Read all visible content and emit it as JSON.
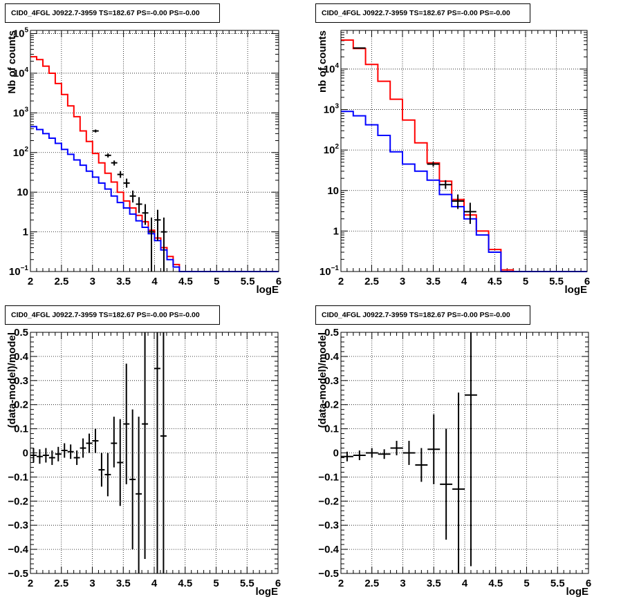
{
  "chart_data": [
    {
      "panel": "top-left",
      "type": "line",
      "title": "CID0_4FGL J0922.7-3959 TS=182.67 PS=-0.00 PS=-0.00",
      "xlabel": "logE",
      "ylabel": "Nb of counts",
      "xlim": [
        2,
        6
      ],
      "ylim": [
        0.1,
        120000
      ],
      "ylog": true,
      "grid": true,
      "xticks": [
        "2",
        "2.5",
        "3",
        "3.5",
        "4",
        "4.5",
        "5",
        "5.5",
        "6"
      ],
      "yticks": [
        {
          "v": 0.1,
          "l": "10",
          "sup": "−1"
        },
        {
          "v": 1,
          "l": "1",
          "sup": ""
        },
        {
          "v": 10,
          "l": "10",
          "sup": ""
        },
        {
          "v": 100,
          "l": "10",
          "sup": "2"
        },
        {
          "v": 1000,
          "l": "10",
          "sup": "3"
        },
        {
          "v": 10000,
          "l": "10",
          "sup": "4"
        },
        {
          "v": 100000,
          "l": "10",
          "sup": "5"
        }
      ],
      "bin_edges": [
        2.0,
        2.1,
        2.2,
        2.3,
        2.4,
        2.5,
        2.6,
        2.7,
        2.8,
        2.9,
        3.0,
        3.1,
        3.2,
        3.3,
        3.4,
        3.5,
        3.6,
        3.7,
        3.8,
        3.9,
        4.0,
        4.1,
        4.2,
        4.3,
        4.4,
        4.5,
        4.6,
        4.7,
        4.8,
        4.9,
        5.0,
        5.1,
        5.2,
        5.3,
        5.4,
        5.5,
        5.6,
        5.7,
        5.8,
        5.9,
        6.0
      ],
      "series": [
        {
          "color": "#ff0000",
          "values": [
            26000,
            22000,
            15000,
            10000,
            5500,
            2900,
            1500,
            800,
            350,
            190,
            95,
            55,
            30,
            18,
            10,
            6,
            4,
            2.6,
            1.8,
            1.1,
            0.7,
            0.4,
            0.24,
            0.15,
            0.1,
            0.1,
            0.1,
            0.1,
            0.1,
            0.1,
            0.1,
            0.1,
            0.1,
            0.1,
            0.1,
            0.1,
            0.1,
            0.1,
            0.1,
            0.1
          ]
        },
        {
          "color": "#0000ff",
          "values": [
            450,
            380,
            300,
            230,
            170,
            120,
            90,
            65,
            48,
            34,
            24,
            17,
            12,
            8,
            5.5,
            4,
            2.8,
            1.9,
            1.3,
            0.9,
            0.6,
            0.35,
            0.2,
            0.13,
            0.1,
            0.1,
            0.1,
            0.1,
            0.1,
            0.1,
            0.1,
            0.1,
            0.1,
            0.1,
            0.1,
            0.1,
            0.1,
            0.1,
            0.1,
            0.1
          ]
        }
      ],
      "points": [
        {
          "x": 3.05,
          "xerr": 0.05,
          "y": 350,
          "lo": 320,
          "hi": 380
        },
        {
          "x": 3.25,
          "xerr": 0.05,
          "y": 85,
          "lo": 75,
          "hi": 95
        },
        {
          "x": 3.35,
          "xerr": 0.05,
          "y": 55,
          "lo": 47,
          "hi": 63
        },
        {
          "x": 3.45,
          "xerr": 0.05,
          "y": 28,
          "lo": 23,
          "hi": 34
        },
        {
          "x": 3.55,
          "xerr": 0.05,
          "y": 17,
          "lo": 13,
          "hi": 22
        },
        {
          "x": 3.65,
          "xerr": 0.05,
          "y": 8,
          "lo": 5.5,
          "hi": 11
        },
        {
          "x": 3.75,
          "xerr": 0.05,
          "y": 5,
          "lo": 3,
          "hi": 7.5
        },
        {
          "x": 3.85,
          "xerr": 0.05,
          "y": 3,
          "lo": 1.5,
          "hi": 5
        },
        {
          "x": 3.95,
          "xerr": 0.05,
          "y": 1,
          "lo": 0.1,
          "hi": 2.3
        },
        {
          "x": 4.05,
          "xerr": 0.05,
          "y": 2,
          "lo": 0.6,
          "hi": 3.6
        },
        {
          "x": 4.15,
          "xerr": 0.05,
          "y": 1,
          "lo": 0.1,
          "hi": 2.3
        }
      ]
    },
    {
      "panel": "top-right",
      "type": "line",
      "title": "CID0_4FGL J0922.7-3959 TS=182.67 PS=-0.00 PS=-0.00",
      "xlabel": "logE",
      "ylabel": "nb of counts",
      "xlim": [
        2,
        6
      ],
      "ylim": [
        0.1,
        90000
      ],
      "ylog": true,
      "grid": true,
      "xticks": [
        "2",
        "2.5",
        "3",
        "3.5",
        "4",
        "4.5",
        "5",
        "5.5",
        "6"
      ],
      "yticks": [
        {
          "v": 0.1,
          "l": "10",
          "sup": "−1"
        },
        {
          "v": 1,
          "l": "1",
          "sup": ""
        },
        {
          "v": 10,
          "l": "10",
          "sup": ""
        },
        {
          "v": 100,
          "l": "10",
          "sup": "2"
        },
        {
          "v": 1000,
          "l": "10",
          "sup": "3"
        },
        {
          "v": 10000,
          "l": "10",
          "sup": "4"
        }
      ],
      "bin_edges": [
        2.0,
        2.2,
        2.4,
        2.6,
        2.8,
        3.0,
        3.2,
        3.4,
        3.6,
        3.8,
        4.0,
        4.2,
        4.4,
        4.6,
        4.8,
        5.0,
        5.2,
        5.4,
        5.6,
        5.8,
        6.0
      ],
      "series": [
        {
          "color": "#ff0000",
          "values": [
            52000,
            32000,
            13000,
            5000,
            1800,
            550,
            150,
            48,
            17,
            6,
            2.5,
            1,
            0.35,
            0.11,
            0.1,
            0.1,
            0.1,
            0.1,
            0.1,
            0.1
          ]
        },
        {
          "color": "#0000ff",
          "values": [
            900,
            700,
            420,
            230,
            90,
            45,
            30,
            18,
            8,
            4,
            2,
            0.8,
            0.3,
            0.1,
            0.1,
            0.1,
            0.1,
            0.1,
            0.1,
            0.1
          ]
        }
      ],
      "points": [
        {
          "x": 2.3,
          "xerr": 0.1,
          "y": 33000,
          "lo": 32000,
          "hi": 34000
        },
        {
          "x": 3.5,
          "xerr": 0.1,
          "y": 45,
          "lo": 39,
          "hi": 51
        },
        {
          "x": 3.7,
          "xerr": 0.1,
          "y": 14,
          "lo": 11,
          "hi": 18
        },
        {
          "x": 3.9,
          "xerr": 0.1,
          "y": 5.5,
          "lo": 3.5,
          "hi": 8
        },
        {
          "x": 4.1,
          "xerr": 0.1,
          "y": 3,
          "lo": 1.5,
          "hi": 5
        }
      ]
    },
    {
      "panel": "bottom-left",
      "type": "scatter",
      "title": "CID0_4FGL J0922.7-3959 TS=182.67 PS=-0.00 PS=-0.00",
      "xlabel": "logE",
      "ylabel": "(data-model)/model",
      "xlim": [
        2,
        6
      ],
      "ylim": [
        -0.5,
        0.5
      ],
      "ylog": false,
      "grid": true,
      "xticks": [
        "2",
        "2.5",
        "3",
        "3.5",
        "4",
        "4.5",
        "5",
        "5.5",
        "6"
      ],
      "yticks": [
        {
          "v": -0.5,
          "l": "−0.5"
        },
        {
          "v": -0.4,
          "l": "−0.4"
        },
        {
          "v": -0.3,
          "l": "−0.3"
        },
        {
          "v": -0.2,
          "l": "−0.2"
        },
        {
          "v": -0.1,
          "l": "−0.1"
        },
        {
          "v": 0,
          "l": "0"
        },
        {
          "v": 0.1,
          "l": "0.1"
        },
        {
          "v": 0.2,
          "l": "0.2"
        },
        {
          "v": 0.3,
          "l": "0.3"
        },
        {
          "v": 0.4,
          "l": "0.4"
        },
        {
          "v": 0.5,
          "l": "0.5"
        }
      ],
      "series": [],
      "points": [
        {
          "x": 2.05,
          "xerr": 0.05,
          "y": -0.01,
          "lo": -0.04,
          "hi": 0.02
        },
        {
          "x": 2.15,
          "xerr": 0.05,
          "y": -0.015,
          "lo": -0.045,
          "hi": 0.015
        },
        {
          "x": 2.25,
          "xerr": 0.05,
          "y": -0.01,
          "lo": -0.04,
          "hi": 0.02
        },
        {
          "x": 2.35,
          "xerr": 0.05,
          "y": -0.02,
          "lo": -0.05,
          "hi": 0.01
        },
        {
          "x": 2.45,
          "xerr": 0.05,
          "y": -0.005,
          "lo": -0.035,
          "hi": 0.025
        },
        {
          "x": 2.55,
          "xerr": 0.05,
          "y": 0.01,
          "lo": -0.02,
          "hi": 0.04
        },
        {
          "x": 2.65,
          "xerr": 0.05,
          "y": 0.005,
          "lo": -0.025,
          "hi": 0.035
        },
        {
          "x": 2.75,
          "xerr": 0.05,
          "y": -0.02,
          "lo": -0.05,
          "hi": 0.01
        },
        {
          "x": 2.85,
          "xerr": 0.05,
          "y": 0.02,
          "lo": -0.02,
          "hi": 0.06
        },
        {
          "x": 2.95,
          "xerr": 0.05,
          "y": 0.04,
          "lo": 0.0,
          "hi": 0.08
        },
        {
          "x": 3.05,
          "xerr": 0.05,
          "y": 0.05,
          "lo": 0.0,
          "hi": 0.1
        },
        {
          "x": 3.15,
          "xerr": 0.05,
          "y": -0.07,
          "lo": -0.14,
          "hi": 0.0
        },
        {
          "x": 3.25,
          "xerr": 0.05,
          "y": -0.09,
          "lo": -0.18,
          "hi": 0.0
        },
        {
          "x": 3.35,
          "xerr": 0.05,
          "y": 0.04,
          "lo": -0.06,
          "hi": 0.15
        },
        {
          "x": 3.45,
          "xerr": 0.05,
          "y": -0.04,
          "lo": -0.22,
          "hi": 0.14
        },
        {
          "x": 3.55,
          "xerr": 0.05,
          "y": 0.12,
          "lo": -0.13,
          "hi": 0.37
        },
        {
          "x": 3.65,
          "xerr": 0.05,
          "y": -0.11,
          "lo": -0.4,
          "hi": 0.18
        },
        {
          "x": 3.75,
          "xerr": 0.05,
          "y": -0.17,
          "lo": -0.5,
          "hi": 0.15
        },
        {
          "x": 3.85,
          "xerr": 0.05,
          "y": 0.12,
          "lo": -0.44,
          "hi": 0.5
        },
        {
          "x": 4.05,
          "xerr": 0.05,
          "y": 0.35,
          "lo": -0.5,
          "hi": 0.5
        },
        {
          "x": 4.15,
          "xerr": 0.05,
          "y": 0.07,
          "lo": -0.5,
          "hi": 0.5
        }
      ]
    },
    {
      "panel": "bottom-right",
      "type": "scatter",
      "title": "CID0_4FGL J0922.7-3959 TS=182.67 PS=-0.00 PS=-0.00",
      "xlabel": "logE",
      "ylabel": "(data-model)/model",
      "xlim": [
        2,
        6
      ],
      "ylim": [
        -0.5,
        0.5
      ],
      "ylog": false,
      "grid": true,
      "xticks": [
        "2",
        "2.5",
        "3",
        "3.5",
        "4",
        "4.5",
        "5",
        "5.5",
        "6"
      ],
      "yticks": [
        {
          "v": -0.5,
          "l": "−0.5"
        },
        {
          "v": -0.4,
          "l": "−0.4"
        },
        {
          "v": -0.3,
          "l": "−0.3"
        },
        {
          "v": -0.2,
          "l": "−0.2"
        },
        {
          "v": -0.1,
          "l": "−0.1"
        },
        {
          "v": 0,
          "l": "0"
        },
        {
          "v": 0.1,
          "l": "0.1"
        },
        {
          "v": 0.2,
          "l": "0.2"
        },
        {
          "v": 0.3,
          "l": "0.3"
        },
        {
          "v": 0.4,
          "l": "0.4"
        },
        {
          "v": 0.5,
          "l": "0.5"
        }
      ],
      "series": [],
      "points": [
        {
          "x": 2.1,
          "xerr": 0.1,
          "y": -0.015,
          "lo": -0.035,
          "hi": 0.005
        },
        {
          "x": 2.3,
          "xerr": 0.1,
          "y": -0.01,
          "lo": -0.03,
          "hi": 0.01
        },
        {
          "x": 2.5,
          "xerr": 0.1,
          "y": 0.0,
          "lo": -0.02,
          "hi": 0.02
        },
        {
          "x": 2.7,
          "xerr": 0.1,
          "y": -0.005,
          "lo": -0.025,
          "hi": 0.015
        },
        {
          "x": 2.9,
          "xerr": 0.1,
          "y": 0.02,
          "lo": -0.01,
          "hi": 0.05
        },
        {
          "x": 3.1,
          "xerr": 0.1,
          "y": 0.0,
          "lo": -0.05,
          "hi": 0.05
        },
        {
          "x": 3.3,
          "xerr": 0.1,
          "y": -0.05,
          "lo": -0.12,
          "hi": 0.02
        },
        {
          "x": 3.5,
          "xerr": 0.1,
          "y": 0.015,
          "lo": -0.13,
          "hi": 0.16
        },
        {
          "x": 3.7,
          "xerr": 0.1,
          "y": -0.13,
          "lo": -0.36,
          "hi": 0.1
        },
        {
          "x": 3.9,
          "xerr": 0.1,
          "y": -0.15,
          "lo": -0.5,
          "hi": 0.25
        },
        {
          "x": 4.1,
          "xerr": 0.1,
          "y": 0.24,
          "lo": -0.47,
          "hi": 0.5
        }
      ]
    }
  ]
}
